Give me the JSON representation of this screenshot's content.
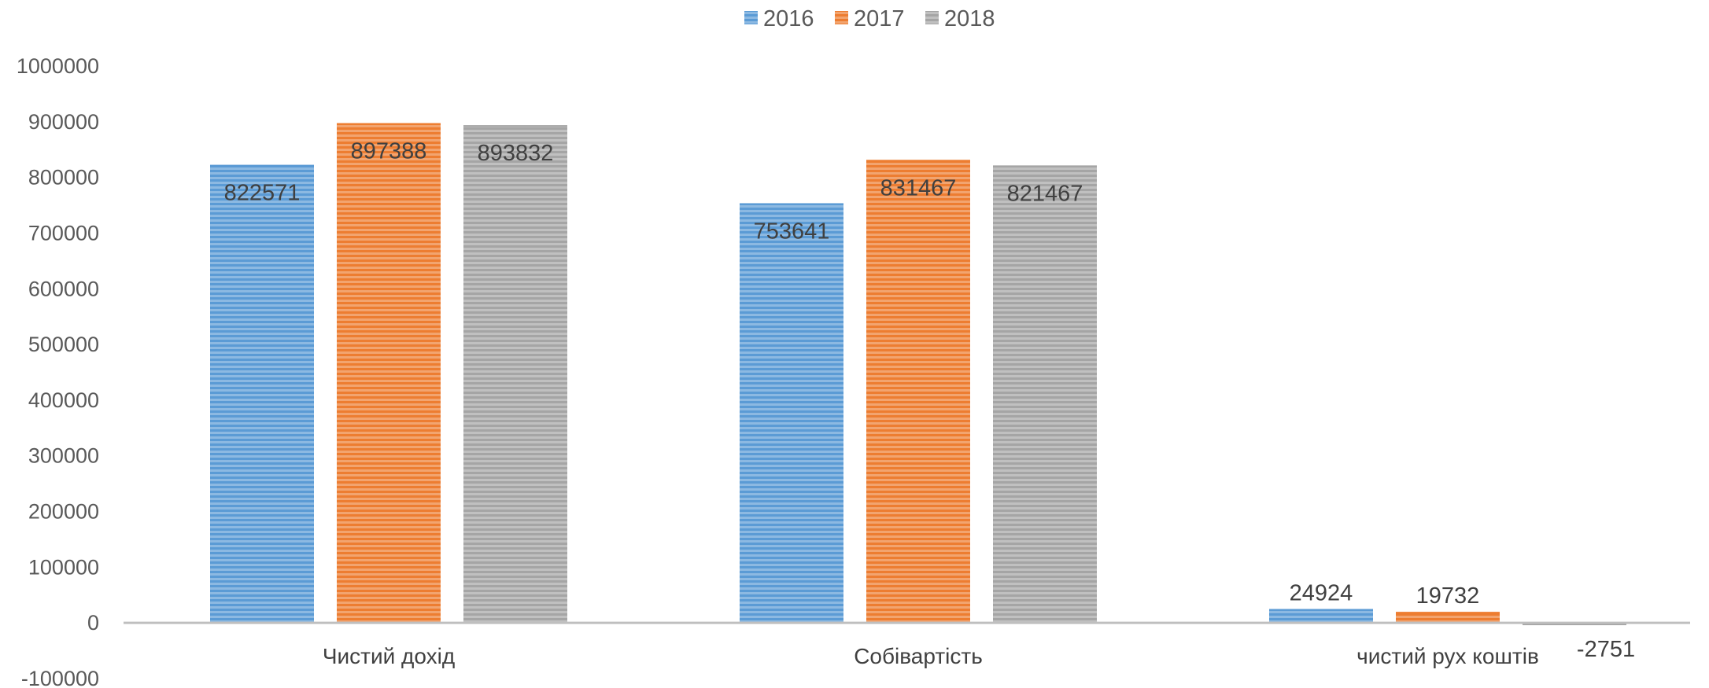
{
  "chart_data": {
    "type": "bar",
    "categories": [
      "Чистий дохід",
      "Собівартість",
      "чистий рух коштів"
    ],
    "series": [
      {
        "name": "2016",
        "values": [
          822571,
          753641,
          24924
        ],
        "labels": [
          "822571",
          "753641",
          "24924"
        ],
        "color": "#5b9bd5"
      },
      {
        "name": "2017",
        "values": [
          897388,
          831467,
          19732
        ],
        "labels": [
          "897388",
          "831467",
          "19732"
        ],
        "color": "#ed7d31"
      },
      {
        "name": "2018",
        "values": [
          893832,
          821467,
          -2751
        ],
        "labels": [
          "893832",
          "821467",
          "-2751"
        ],
        "color": "#a5a5a5"
      }
    ],
    "ylim": [
      -100000,
      1000000
    ],
    "yticks": [
      "-100000",
      "0",
      "100000",
      "200000",
      "300000",
      "400000",
      "500000",
      "600000",
      "700000",
      "800000",
      "900000",
      "1000000"
    ],
    "legend": "top-center",
    "grid": false,
    "bar_fill": "horizontal-stripes"
  }
}
